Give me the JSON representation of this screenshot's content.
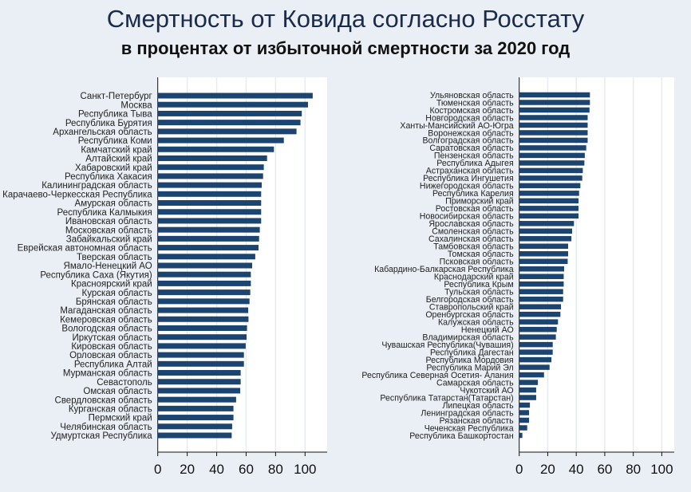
{
  "title": "Смертность от Ковида согласно Росстату",
  "subtitle": "в процентах от избыточной смертности за 2020 год",
  "colors": {
    "bar": "#1c4471",
    "plot_bg": "#ffffff",
    "page_bg": "#e9eff4",
    "grid": "#e6ebef"
  },
  "chart_data": [
    {
      "type": "bar",
      "orientation": "horizontal",
      "xlim": [
        0,
        115
      ],
      "xticks": [
        0,
        20,
        40,
        60,
        80,
        100
      ],
      "grid": true,
      "categories": [
        "Санкт-Петербург",
        "Москва",
        "Республика Тыва",
        "Республика Бурятия",
        "Архангельская область",
        "Республика Коми",
        "Камчатский край",
        "Алтайский край",
        "Хабаровский край",
        "Республика Хакасия",
        "Калининградская область",
        "Карачаево-Черкесская Республика",
        "Амурская область",
        "Республика Калмыкия",
        "Ивановская область",
        "Московская область",
        "Забайкальский край",
        "Еврейская автономная область",
        "Тверская область",
        "Ямало-Ненецкий АО",
        "Республика Саха (Якутия)",
        "Красноярский край",
        "Курская область",
        "Брянская область",
        "Магаданская область",
        "Кемеровская область",
        "Вологодская область",
        "Иркутская область",
        "Кировская область",
        "Орловская область",
        "Республика Алтай",
        "Мурманская область",
        "Севастополь",
        "Омская область",
        "Свердловская область",
        "Курганская область",
        "Пермский край",
        "Челябинская область",
        "Удмуртская Республика"
      ],
      "values": [
        105.2,
        102.0,
        97.8,
        96.9,
        94.2,
        85.6,
        78.9,
        74.2,
        72.0,
        71.5,
        70.6,
        70.2,
        70.2,
        70.2,
        70.2,
        69.3,
        68.8,
        68.4,
        66.2,
        64.1,
        63.2,
        63.2,
        62.8,
        62.3,
        61.4,
        61.6,
        60.6,
        60.3,
        59.7,
        58.5,
        58.5,
        56.3,
        56.3,
        56.0,
        53.2,
        51.4,
        51.4,
        50.5,
        50.2
      ]
    },
    {
      "type": "bar",
      "orientation": "horizontal",
      "xlim": [
        0,
        110
      ],
      "xticks": [
        0,
        20,
        40,
        60,
        80,
        100
      ],
      "grid": true,
      "categories": [
        "Ульяновская область",
        "Тюменская область",
        "Костромская область",
        "Новгородская область",
        "Ханты-Мансийский АО-Югра",
        "Воронежская область",
        "Волгоградская область",
        "Саратовская область",
        "Пензенская область",
        "Республика Адыгея",
        "Астраханская область",
        "Республика Ингушетия",
        "Нижегородская область",
        "Республика Карелия",
        "Приморский край",
        "Ростовская область",
        "Новосибирская область",
        "Ярославская область",
        "Смоленская область",
        "Сахалинская область",
        "Тамбовская область",
        "Томская область",
        "Псковская область",
        "Кабардино-Балкарская Республика",
        "Краснодарский край",
        "Республика Крым",
        "Тульская область",
        "Белгородская область",
        "Ставропольский край",
        "Оренбургская область",
        "Калужская область",
        "Ненецкий АО",
        "Владимирская область",
        "Чувашская Республика(Чувашия)",
        "Республика Дагестан",
        "Республика Мордовия",
        "Республика Марий Эл",
        "Республика Северная Осетия- Алания",
        "Самарская область",
        "Чукотский АО",
        "Республика Татарстан(Татарстан)",
        "Липецкая область",
        "Ленинградская область",
        "Рязанская область",
        "Чеченская Республика",
        "Республика Башкортостан"
      ],
      "values": [
        49.6,
        49.6,
        49.3,
        48.0,
        48.0,
        48.0,
        48.0,
        47.0,
        46.0,
        45.7,
        44.6,
        44.2,
        42.9,
        42.0,
        41.6,
        41.6,
        41.6,
        38.4,
        37.1,
        36.6,
        34.3,
        34.3,
        34.0,
        31.5,
        31.2,
        31.2,
        30.8,
        30.8,
        29.3,
        28.9,
        27.2,
        26.3,
        25.7,
        23.5,
        23.5,
        22.6,
        21.3,
        17.4,
        13.1,
        11.9,
        11.9,
        7.5,
        6.9,
        6.9,
        5.6,
        2.2
      ]
    }
  ]
}
